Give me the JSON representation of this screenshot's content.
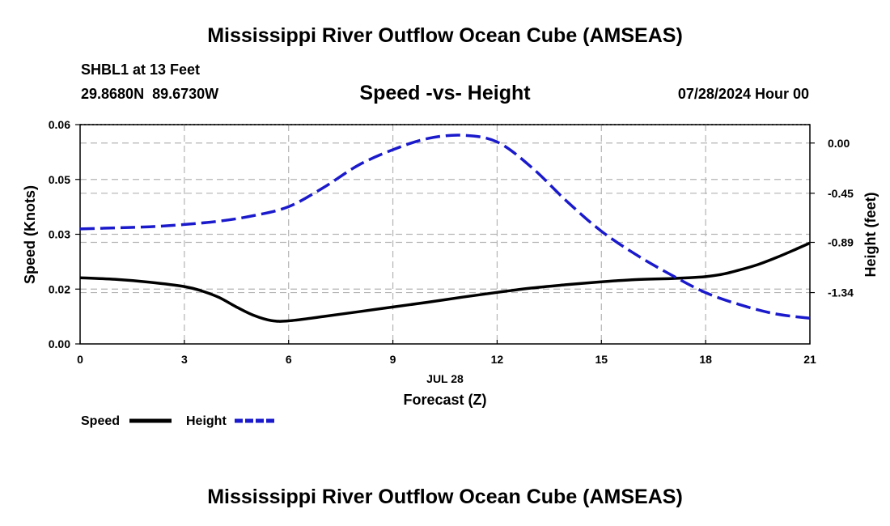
{
  "header": {
    "title": "Mississippi River Outflow Ocean Cube (AMSEAS)",
    "station": "SHBL1 at 13 Feet",
    "coords": "29.8680N  89.6730W",
    "datetime": "07/28/2024 Hour 00"
  },
  "footer": {
    "title": "Mississippi River Outflow Ocean Cube (AMSEAS)"
  },
  "chart_data": {
    "type": "line",
    "title": "Speed -vs- Height",
    "xlabel": "Forecast (Z)",
    "xdate": "JUL 28",
    "ylabel_left": "Speed (Knots)",
    "ylabel_right": "Height (feet)",
    "xlim": [
      0,
      21
    ],
    "ylim_left": [
      0,
      0.06
    ],
    "ylim_right": [
      -1.8,
      0.165
    ],
    "x_ticks": [
      0,
      3,
      6,
      9,
      12,
      15,
      18,
      21
    ],
    "x_tick_labels": [
      "0",
      "3",
      "6",
      "9",
      "12",
      "15",
      "18",
      "21"
    ],
    "y_left_ticks": [
      0.0,
      0.015,
      0.03,
      0.045,
      0.06
    ],
    "y_left_tick_labels": [
      "0.00",
      "0.02",
      "0.03",
      "0.05",
      "0.06"
    ],
    "y_right_ticks": [
      0.0,
      -0.45,
      -0.89,
      -1.34
    ],
    "y_right_tick_labels": [
      "0.00",
      "-0.45",
      "-0.89",
      "-1.34"
    ],
    "grid": true,
    "series": [
      {
        "name": "Speed",
        "axis": "left",
        "color": "#000000",
        "style": "solid",
        "x": [
          0,
          1,
          2,
          3,
          3.5,
          4,
          4.5,
          5,
          5.5,
          6,
          7,
          8,
          9,
          10,
          11,
          12,
          13,
          14,
          15,
          16,
          17,
          17.5,
          18,
          18.5,
          19,
          19.5,
          20,
          20.5,
          21
        ],
        "values": [
          0.0181,
          0.0177,
          0.0169,
          0.0157,
          0.0145,
          0.0127,
          0.0101,
          0.0078,
          0.0064,
          0.0063,
          0.0075,
          0.0088,
          0.0101,
          0.0114,
          0.0128,
          0.0141,
          0.0153,
          0.0162,
          0.017,
          0.0176,
          0.0179,
          0.0181,
          0.0184,
          0.0191,
          0.0203,
          0.0217,
          0.0235,
          0.0255,
          0.0276
        ]
      },
      {
        "name": "Height",
        "axis": "right",
        "color": "#1a1acc",
        "style": "dashed",
        "x": [
          0,
          1,
          2,
          3,
          4,
          5,
          6,
          7,
          8,
          9,
          10,
          11,
          12,
          13,
          14,
          15,
          16,
          17,
          18,
          19,
          20,
          21
        ],
        "values": [
          -0.77,
          -0.76,
          -0.75,
          -0.73,
          -0.7,
          -0.65,
          -0.57,
          -0.4,
          -0.2,
          -0.06,
          0.04,
          0.07,
          0.01,
          -0.22,
          -0.52,
          -0.79,
          -1.0,
          -1.18,
          -1.34,
          -1.45,
          -1.53,
          -1.57
        ]
      }
    ],
    "legend": [
      {
        "label": "Speed",
        "color": "#000000",
        "style": "solid"
      },
      {
        "label": "Height",
        "color": "#1a1acc",
        "style": "dashed"
      }
    ]
  }
}
